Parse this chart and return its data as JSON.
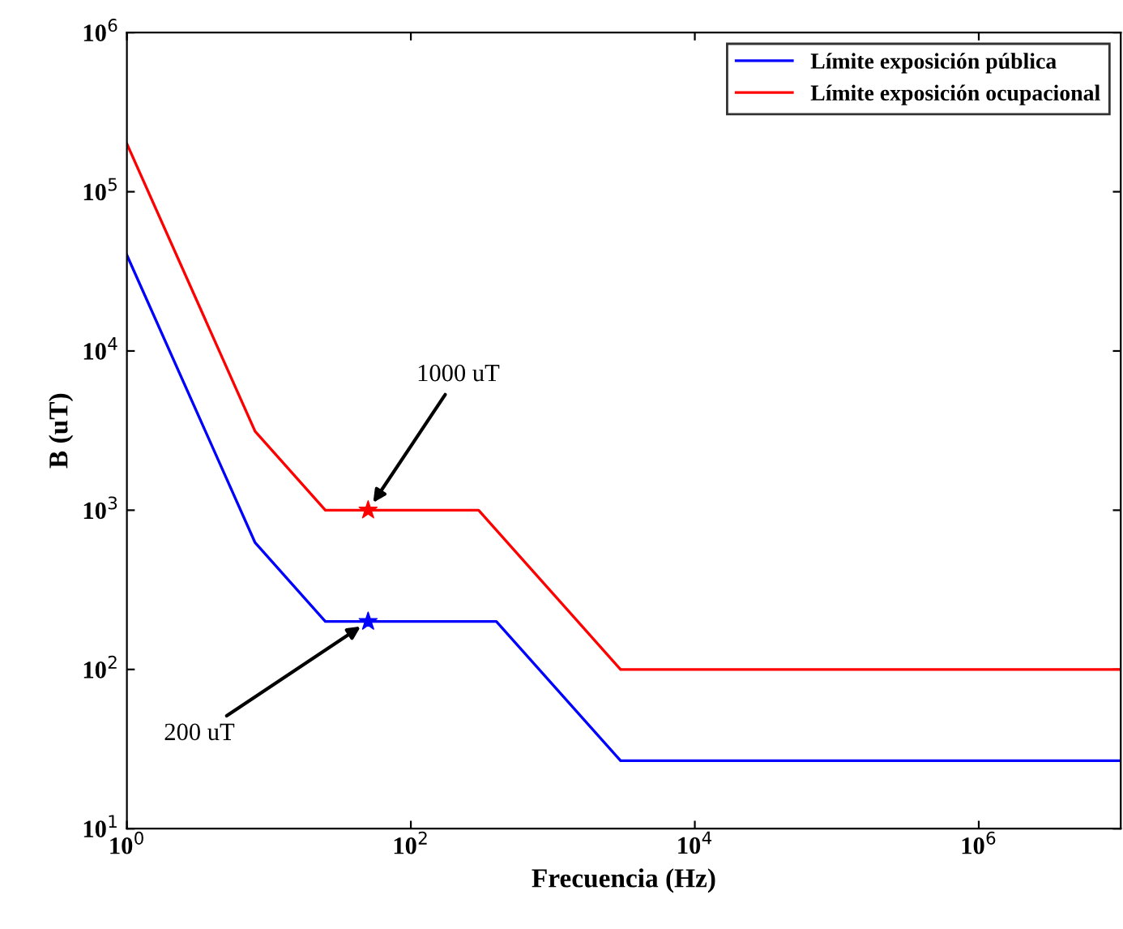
{
  "chart_data": {
    "type": "line",
    "xlabel": "Frecuencia (Hz)",
    "ylabel": "B (uT)",
    "log": "xy",
    "xlim": [
      1,
      10000000
    ],
    "ylim": [
      10,
      1000000
    ],
    "xticks": [
      {
        "value": 1,
        "label": "10$^{0}$"
      },
      {
        "value": 100,
        "label": "10$^{2}$"
      },
      {
        "value": 10000,
        "label": "10$^{4}$"
      },
      {
        "value": 1000000,
        "label": "10$^{6}$"
      }
    ],
    "yticks": [
      {
        "value": 10,
        "label": "10$^{1}$"
      },
      {
        "value": 100,
        "label": "10$^{2}$"
      },
      {
        "value": 1000,
        "label": "10$^{3}$"
      },
      {
        "value": 10000,
        "label": "10$^{4}$"
      },
      {
        "value": 100000,
        "label": "10$^{5}$"
      },
      {
        "value": 1000000,
        "label": "10$^{6}$"
      }
    ],
    "series": [
      {
        "name": "Límite exposición pública",
        "color": "#0000ff",
        "x": [
          1,
          8,
          25,
          400,
          3000,
          10000000
        ],
        "values": [
          40000,
          625,
          200,
          200,
          26.7,
          26.7
        ]
      },
      {
        "name": "Límite exposición ocupacional",
        "color": "#ff0000",
        "x": [
          1,
          8,
          25,
          300,
          3000,
          10000000
        ],
        "values": [
          200000,
          3125,
          1000,
          1000,
          100,
          100
        ]
      },
      {
        "type": "scatter",
        "marker": "star",
        "color": "#ff0000",
        "x": [
          50
        ],
        "values": [
          1000
        ]
      },
      {
        "type": "scatter",
        "marker": "star",
        "color": "#0000ff",
        "x": [
          50
        ],
        "values": [
          200
        ]
      }
    ],
    "annotations": [
      {
        "text": "1000 uT",
        "x": 50,
        "y": 1000
      },
      {
        "text": "200 uT",
        "x": 50,
        "y": 200
      }
    ],
    "legend": "top right",
    "grid": false
  }
}
